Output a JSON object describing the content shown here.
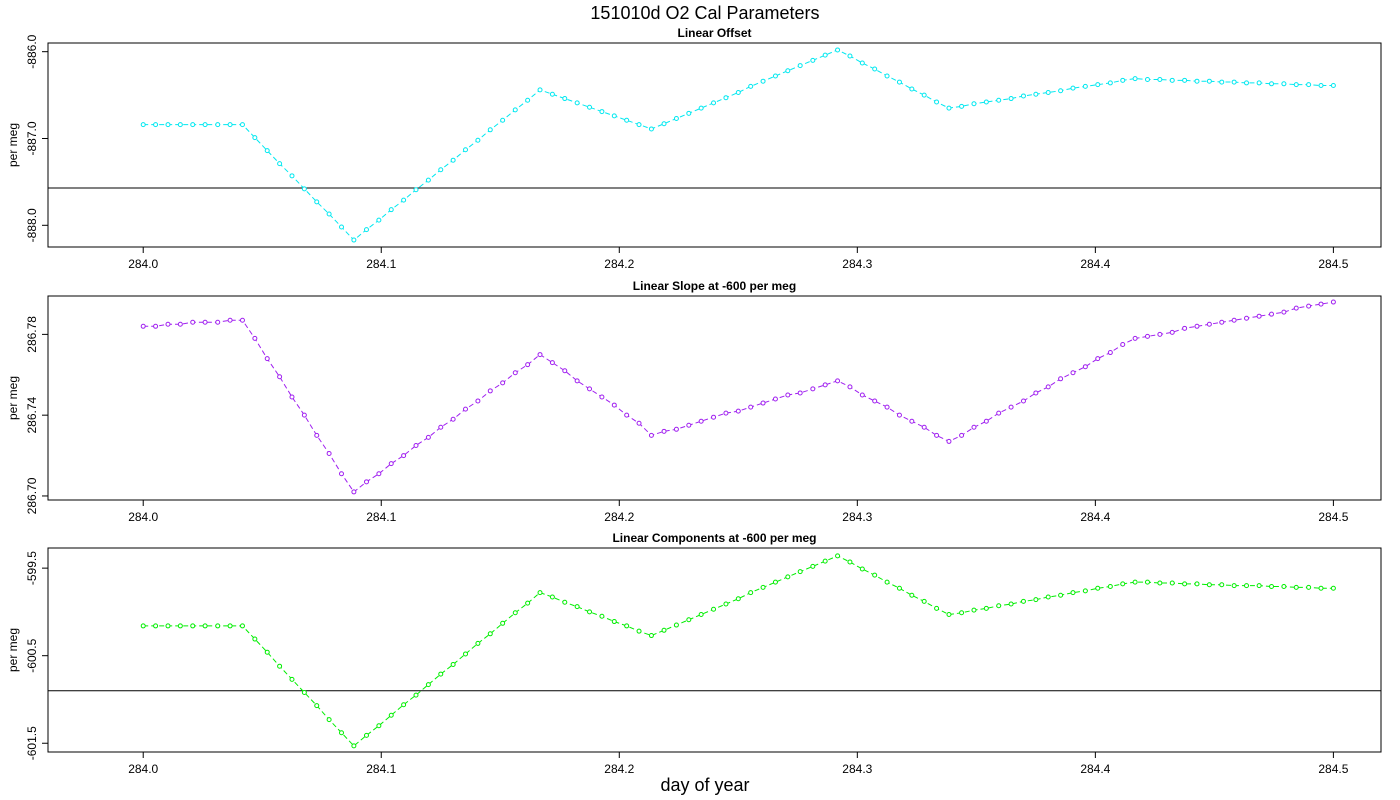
{
  "title": "151010d   O2 Cal Parameters",
  "xlabel": "day of year",
  "chart_data": [
    {
      "type": "line",
      "title": "Linear Offset",
      "ylabel": "per meg",
      "color": "#00e8f0",
      "x": [
        284,
        284.0052,
        284.0104,
        284.0156,
        284.0208,
        284.026,
        284.0313,
        284.0365,
        284.0417,
        284.0469,
        284.0521,
        284.0573,
        284.0625,
        284.0677,
        284.0729,
        284.0781,
        284.0833,
        284.0885,
        284.0938,
        284.099,
        284.1042,
        284.1094,
        284.1146,
        284.1198,
        284.125,
        284.1302,
        284.1354,
        284.1406,
        284.1458,
        284.151,
        284.1563,
        284.1615,
        284.1667,
        284.1719,
        284.1771,
        284.1823,
        284.1875,
        284.1927,
        284.1979,
        284.2031,
        284.2083,
        284.2135,
        284.2188,
        284.224,
        284.2292,
        284.2344,
        284.2396,
        284.2448,
        284.25,
        284.2552,
        284.2604,
        284.2656,
        284.2708,
        284.276,
        284.2813,
        284.2865,
        284.2917,
        284.2969,
        284.3021,
        284.3073,
        284.3125,
        284.3177,
        284.3229,
        284.3281,
        284.3333,
        284.3385,
        284.3438,
        284.349,
        284.3542,
        284.3594,
        284.3646,
        284.3698,
        284.375,
        284.3802,
        284.3854,
        284.3906,
        284.3958,
        284.401,
        284.4063,
        284.4115,
        284.4167,
        284.4219,
        284.4271,
        284.4323,
        284.4375,
        284.4427,
        284.4479,
        284.4531,
        284.4583,
        284.4635,
        284.4688,
        284.474,
        284.4792,
        284.4844,
        284.4896,
        284.4948,
        284.5
      ],
      "values": [
        -886.84,
        -886.84,
        -886.84,
        -886.84,
        -886.84,
        -886.84,
        -886.84,
        -886.84,
        -886.84,
        -886.99,
        -887.14,
        -887.29,
        -887.43,
        -887.58,
        -887.73,
        -887.87,
        -888.02,
        -888.17,
        -888.05,
        -887.94,
        -887.82,
        -887.71,
        -887.59,
        -887.48,
        -887.36,
        -887.25,
        -887.13,
        -887.02,
        -886.9,
        -886.79,
        -886.67,
        -886.56,
        -886.44,
        -886.49,
        -886.54,
        -886.59,
        -886.64,
        -886.69,
        -886.74,
        -886.79,
        -886.84,
        -886.89,
        -886.83,
        -886.77,
        -886.71,
        -886.65,
        -886.59,
        -886.53,
        -886.47,
        -886.4,
        -886.34,
        -886.28,
        -886.22,
        -886.16,
        -886.1,
        -886.04,
        -885.98,
        -886.05,
        -886.13,
        -886.2,
        -886.28,
        -886.35,
        -886.43,
        -886.5,
        -886.58,
        -886.65,
        -886.63,
        -886.6,
        -886.58,
        -886.56,
        -886.54,
        -886.51,
        -886.49,
        -886.47,
        -886.45,
        -886.42,
        -886.4,
        -886.38,
        -886.36,
        -886.33,
        -886.31,
        -886.32,
        -886.32,
        -886.33,
        -886.33,
        -886.34,
        -886.34,
        -886.35,
        -886.35,
        -886.36,
        -886.36,
        -886.37,
        -886.37,
        -886.38,
        -886.38,
        -886.39,
        -886.39
      ],
      "hline": -887.57,
      "xlim": [
        283.96,
        284.52
      ],
      "xticks": [
        {
          "value": 284,
          "label": "284.0"
        },
        284.1,
        284.2,
        284.3,
        284.4,
        284.5
      ],
      "ylim": [
        -888.25,
        -885.9
      ],
      "yticks": [
        {
          "value": -886,
          "label": "-886.0"
        },
        {
          "value": -887,
          "label": "-887.0"
        },
        {
          "value": -888,
          "label": "-888.0"
        }
      ]
    },
    {
      "type": "line",
      "title": "Linear Slope at -600 per meg",
      "ylabel": "per meg",
      "color": "#a020f0",
      "x": [
        284,
        284.0052,
        284.0104,
        284.0156,
        284.0208,
        284.026,
        284.0313,
        284.0365,
        284.0417,
        284.0469,
        284.0521,
        284.0573,
        284.0625,
        284.0677,
        284.0729,
        284.0781,
        284.0833,
        284.0885,
        284.0938,
        284.099,
        284.1042,
        284.1094,
        284.1146,
        284.1198,
        284.125,
        284.1302,
        284.1354,
        284.1406,
        284.1458,
        284.151,
        284.1563,
        284.1615,
        284.1667,
        284.1719,
        284.1771,
        284.1823,
        284.1875,
        284.1927,
        284.1979,
        284.2031,
        284.2083,
        284.2135,
        284.2188,
        284.224,
        284.2292,
        284.2344,
        284.2396,
        284.2448,
        284.25,
        284.2552,
        284.2604,
        284.2656,
        284.2708,
        284.276,
        284.2813,
        284.2865,
        284.2917,
        284.2969,
        284.3021,
        284.3073,
        284.3125,
        284.3177,
        284.3229,
        284.3281,
        284.3333,
        284.3385,
        284.3438,
        284.349,
        284.3542,
        284.3594,
        284.3646,
        284.3698,
        284.375,
        284.3802,
        284.3854,
        284.3906,
        284.3958,
        284.401,
        284.4063,
        284.4115,
        284.4167,
        284.4219,
        284.4271,
        284.4323,
        284.4375,
        284.4427,
        284.4479,
        284.4531,
        284.4583,
        284.4635,
        284.4688,
        284.474,
        284.4792,
        284.4844,
        284.4896,
        284.4948,
        284.5
      ],
      "values": [
        286.784,
        286.784,
        286.785,
        286.785,
        286.786,
        286.786,
        286.786,
        286.787,
        286.787,
        286.778,
        286.768,
        286.759,
        286.749,
        286.74,
        286.73,
        286.721,
        286.711,
        286.702,
        286.707,
        286.711,
        286.716,
        286.72,
        286.725,
        286.729,
        286.734,
        286.738,
        286.743,
        286.747,
        286.752,
        286.756,
        286.761,
        286.765,
        286.77,
        286.766,
        286.762,
        286.757,
        286.753,
        286.749,
        286.745,
        286.74,
        286.736,
        286.73,
        286.732,
        286.733,
        286.735,
        286.737,
        286.739,
        286.741,
        286.742,
        286.744,
        286.746,
        286.748,
        286.75,
        286.751,
        286.753,
        286.755,
        286.757,
        286.754,
        286.75,
        286.747,
        286.744,
        286.74,
        286.737,
        286.734,
        286.73,
        286.727,
        286.73,
        286.734,
        286.737,
        286.741,
        286.744,
        286.747,
        286.751,
        286.754,
        286.758,
        286.761,
        286.764,
        286.768,
        286.771,
        286.775,
        286.778,
        286.779,
        286.78,
        286.781,
        286.783,
        286.784,
        286.785,
        286.786,
        286.787,
        286.788,
        286.789,
        286.79,
        286.791,
        286.793,
        286.794,
        286.795,
        286.796
      ],
      "xlim": [
        283.96,
        284.52
      ],
      "xticks": [
        {
          "value": 284,
          "label": "284.0"
        },
        284.1,
        284.2,
        284.3,
        284.4,
        284.5
      ],
      "ylim": [
        286.698,
        286.799
      ],
      "yticks": [
        {
          "value": 286.7,
          "label": "286.70"
        },
        286.74,
        286.78
      ]
    },
    {
      "type": "line",
      "title": "Linear Components at -600 per meg",
      "ylabel": "per meg",
      "color": "#00ee00",
      "x": [
        284,
        284.0052,
        284.0104,
        284.0156,
        284.0208,
        284.026,
        284.0313,
        284.0365,
        284.0417,
        284.0469,
        284.0521,
        284.0573,
        284.0625,
        284.0677,
        284.0729,
        284.0781,
        284.0833,
        284.0885,
        284.0938,
        284.099,
        284.1042,
        284.1094,
        284.1146,
        284.1198,
        284.125,
        284.1302,
        284.1354,
        284.1406,
        284.1458,
        284.151,
        284.1563,
        284.1615,
        284.1667,
        284.1719,
        284.1771,
        284.1823,
        284.1875,
        284.1927,
        284.1979,
        284.2031,
        284.2083,
        284.2135,
        284.2188,
        284.224,
        284.2292,
        284.2344,
        284.2396,
        284.2448,
        284.25,
        284.2552,
        284.2604,
        284.2656,
        284.2708,
        284.276,
        284.2813,
        284.2865,
        284.2917,
        284.2969,
        284.3021,
        284.3073,
        284.3125,
        284.3177,
        284.3229,
        284.3281,
        284.3333,
        284.3385,
        284.3438,
        284.349,
        284.3542,
        284.3594,
        284.3646,
        284.3698,
        284.375,
        284.3802,
        284.3854,
        284.3906,
        284.3958,
        284.401,
        284.4063,
        284.4115,
        284.4167,
        284.4219,
        284.4271,
        284.4323,
        284.4375,
        284.4427,
        284.4479,
        284.4531,
        284.4583,
        284.4635,
        284.4688,
        284.474,
        284.4792,
        284.4844,
        284.4896,
        284.4948,
        284.5
      ],
      "values": [
        -600.16,
        -600.16,
        -600.16,
        -600.16,
        -600.16,
        -600.16,
        -600.16,
        -600.16,
        -600.16,
        -600.31,
        -600.46,
        -600.62,
        -600.77,
        -600.92,
        -601.07,
        -601.23,
        -601.38,
        -601.53,
        -601.41,
        -601.3,
        -601.18,
        -601.06,
        -600.95,
        -600.83,
        -600.71,
        -600.6,
        -600.48,
        -600.36,
        -600.25,
        -600.13,
        -600.01,
        -599.9,
        -599.78,
        -599.83,
        -599.89,
        -599.94,
        -600,
        -600.05,
        -600.11,
        -600.16,
        -600.22,
        -600.27,
        -600.21,
        -600.15,
        -600.09,
        -600.03,
        -599.97,
        -599.91,
        -599.85,
        -599.78,
        -599.72,
        -599.66,
        -599.6,
        -599.54,
        -599.48,
        -599.42,
        -599.36,
        -599.43,
        -599.51,
        -599.58,
        -599.66,
        -599.73,
        -599.81,
        -599.88,
        -599.96,
        -600.03,
        -600.01,
        -599.98,
        -599.96,
        -599.93,
        -599.91,
        -599.88,
        -599.86,
        -599.83,
        -599.81,
        -599.78,
        -599.76,
        -599.73,
        -599.71,
        -599.68,
        -599.66,
        -599.66,
        -599.67,
        -599.67,
        -599.68,
        -599.68,
        -599.69,
        -599.69,
        -599.7,
        -599.7,
        -599.7,
        -599.71,
        -599.71,
        -599.72,
        -599.72,
        -599.73,
        -599.73
      ],
      "hline": -600.9,
      "xlim": [
        283.96,
        284.52
      ],
      "xticks": [
        {
          "value": 284,
          "label": "284.0"
        },
        284.1,
        284.2,
        284.3,
        284.4,
        284.5
      ],
      "ylim": [
        -601.6,
        -599.27
      ],
      "yticks": [
        -599.5,
        -600.5,
        -601.5
      ]
    }
  ]
}
